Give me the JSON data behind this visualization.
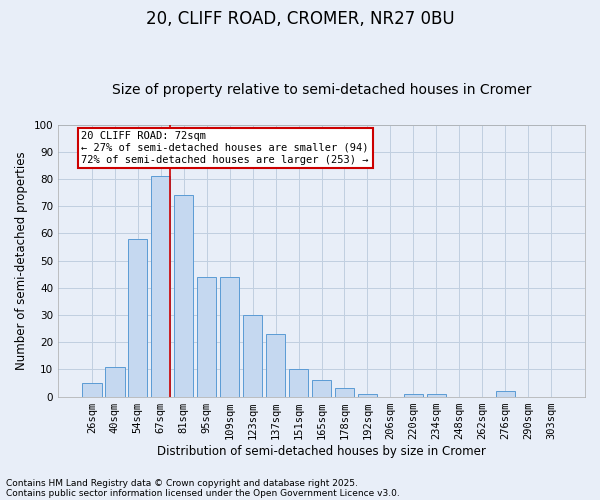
{
  "title1": "20, CLIFF ROAD, CROMER, NR27 0BU",
  "title2": "Size of property relative to semi-detached houses in Cromer",
  "xlabel": "Distribution of semi-detached houses by size in Cromer",
  "ylabel": "Number of semi-detached properties",
  "categories": [
    "26sqm",
    "40sqm",
    "54sqm",
    "67sqm",
    "81sqm",
    "95sqm",
    "109sqm",
    "123sqm",
    "137sqm",
    "151sqm",
    "165sqm",
    "178sqm",
    "192sqm",
    "206sqm",
    "220sqm",
    "234sqm",
    "248sqm",
    "262sqm",
    "276sqm",
    "290sqm",
    "303sqm"
  ],
  "values": [
    5,
    11,
    58,
    81,
    74,
    44,
    44,
    30,
    23,
    10,
    6,
    3,
    1,
    0,
    1,
    1,
    0,
    0,
    2,
    0,
    0
  ],
  "bar_color": "#c5d8f0",
  "bar_edge_color": "#5b9bd5",
  "red_line_bar_index": 3,
  "annotation_text": "20 CLIFF ROAD: 72sqm\n← 27% of semi-detached houses are smaller (94)\n72% of semi-detached houses are larger (253) →",
  "annotation_box_color": "#ffffff",
  "annotation_box_edge_color": "#cc0000",
  "grid_color": "#c0cfe0",
  "background_color": "#e8eef8",
  "ylim": [
    0,
    100
  ],
  "yticks": [
    0,
    10,
    20,
    30,
    40,
    50,
    60,
    70,
    80,
    90,
    100
  ],
  "footer1": "Contains HM Land Registry data © Crown copyright and database right 2025.",
  "footer2": "Contains public sector information licensed under the Open Government Licence v3.0.",
  "title1_fontsize": 12,
  "title2_fontsize": 10,
  "xlabel_fontsize": 8.5,
  "ylabel_fontsize": 8.5,
  "tick_fontsize": 7.5,
  "annotation_fontsize": 7.5,
  "footer_fontsize": 6.5,
  "red_line_color": "#cc0000"
}
